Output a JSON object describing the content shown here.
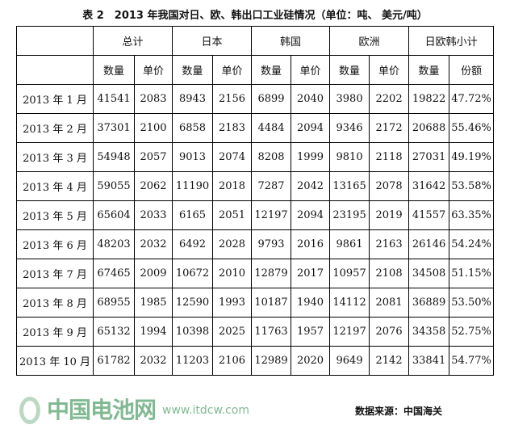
{
  "title": "表 2　2013 年我国对日、欧、韩出口工业硅情况（单位：吨、 美元/吨）",
  "groups": [
    "总计",
    "日本",
    "韩国",
    "欧洲",
    "日欧韩小计"
  ],
  "subheaders": [
    "数量",
    "单价",
    "数量",
    "单价",
    "数量",
    "单价",
    "数量",
    "单价",
    "数量",
    "份额"
  ],
  "rows": [
    [
      "2013 年 1 月",
      "41541",
      "2083",
      "8943",
      "2156",
      "6899",
      "2040",
      "3980",
      "2202",
      "19822",
      "47.72%"
    ],
    [
      "2013 年 2 月",
      "37301",
      "2100",
      "6858",
      "2183",
      "4484",
      "2094",
      "9346",
      "2172",
      "20688",
      "55.46%"
    ],
    [
      "2013 年 3 月",
      "54948",
      "2057",
      "9013",
      "2074",
      "8208",
      "1999",
      "9810",
      "2118",
      "27031",
      "49.19%"
    ],
    [
      "2013 年 4 月",
      "59055",
      "2062",
      "11190",
      "2018",
      "7287",
      "2042",
      "13165",
      "2078",
      "31642",
      "53.58%"
    ],
    [
      "2013 年 5 月",
      "65604",
      "2033",
      "6165",
      "2051",
      "12197",
      "2094",
      "23195",
      "2019",
      "41557",
      "63.35%"
    ],
    [
      "2013 年 6 月",
      "48203",
      "2032",
      "6492",
      "2028",
      "9793",
      "2016",
      "9861",
      "2163",
      "26146",
      "54.24%"
    ],
    [
      "2013 年 7 月",
      "67465",
      "2009",
      "10672",
      "2010",
      "12879",
      "2017",
      "10957",
      "2108",
      "34508",
      "51.15%"
    ],
    [
      "2013 年 8 月",
      "68955",
      "1985",
      "12590",
      "1993",
      "10187",
      "1940",
      "14112",
      "2081",
      "36889",
      "53.50%"
    ],
    [
      "2013 年 9 月",
      "65132",
      "1994",
      "10398",
      "2025",
      "11763",
      "1957",
      "12197",
      "2076",
      "34358",
      "52.75%"
    ],
    [
      "2013 年 10 月",
      "61782",
      "2032",
      "11203",
      "2106",
      "12989",
      "2020",
      "9649",
      "2142",
      "33841",
      "54.77%"
    ]
  ],
  "source": "数据来源：中国海关",
  "watermark": {
    "name": "中国电池网",
    "url": "www.itdcw.com",
    "color": "#2e8b4a"
  }
}
